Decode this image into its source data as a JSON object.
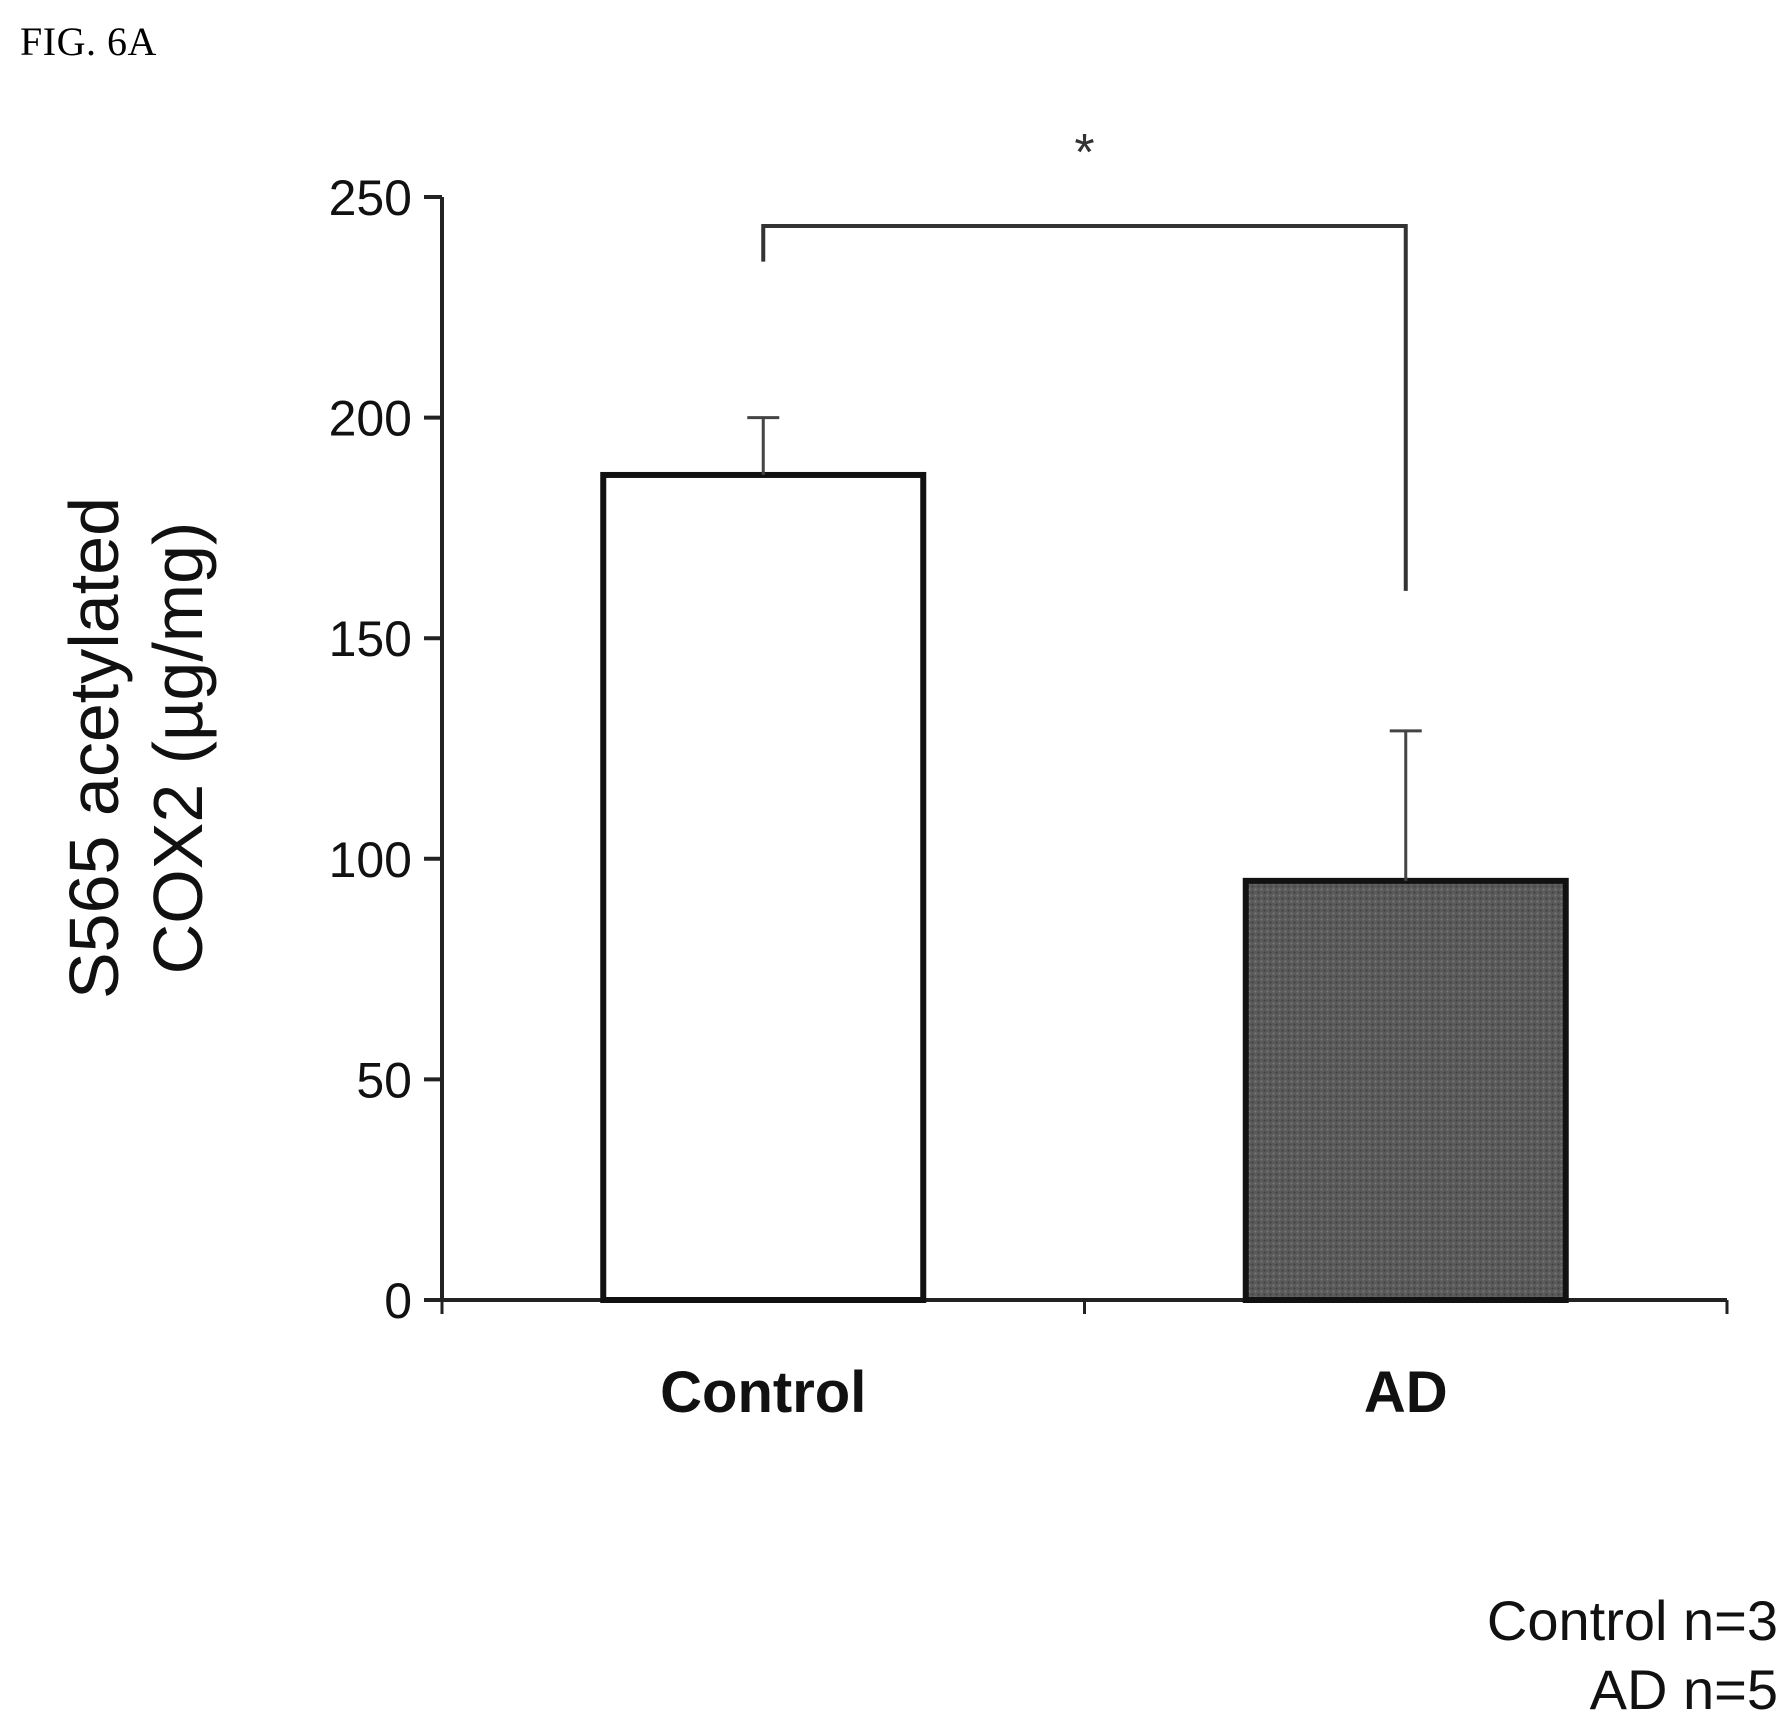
{
  "figure_label": "FIG. 6A",
  "chart_data": {
    "type": "bar",
    "categories": [
      "Control",
      "AD"
    ],
    "values": [
      187,
      95
    ],
    "error_bars": [
      13,
      34
    ],
    "bar_colors": [
      "#ffffff",
      "#555555"
    ],
    "ylabel_lines": [
      "S565 acetylated",
      "COX2 (µg/mg)"
    ],
    "xlabel": "",
    "ylim": [
      0,
      250
    ],
    "yticks": [
      0,
      50,
      100,
      150,
      200,
      250
    ],
    "grid": false,
    "significance": {
      "pair": [
        "Control",
        "AD"
      ],
      "mark": "*"
    },
    "sample_sizes": [
      "Control n=3",
      "AD n=5"
    ]
  }
}
